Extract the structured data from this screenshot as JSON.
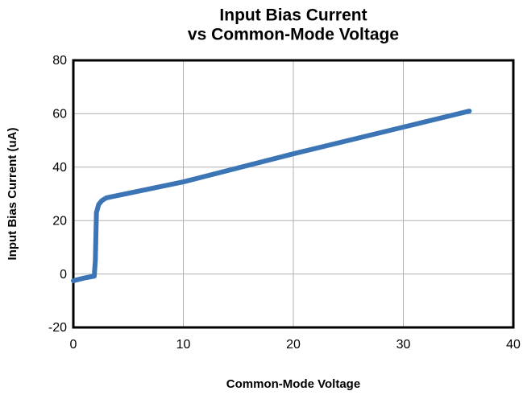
{
  "chart_data": {
    "type": "line",
    "title": [
      "Input Bias Current",
      "vs Common-Mode Voltage"
    ],
    "x_label": "Common-Mode Voltage",
    "y_label": "Input Bias Current (uA)",
    "x": [
      0,
      1,
      1.9,
      2.0,
      2.1,
      2.3,
      2.6,
      3,
      10,
      20,
      30,
      36
    ],
    "values": [
      -2.5,
      -1.5,
      -0.8,
      5,
      23,
      26,
      27.5,
      28.5,
      34.5,
      45,
      55,
      61
    ],
    "color": "#3b75b6",
    "xlim": [
      0,
      40
    ],
    "xticks": [
      0,
      10,
      20,
      30,
      40
    ],
    "ylim": [
      -20,
      80
    ],
    "yticks": [
      -20,
      0,
      20,
      40,
      60,
      80
    ],
    "grid": true
  }
}
